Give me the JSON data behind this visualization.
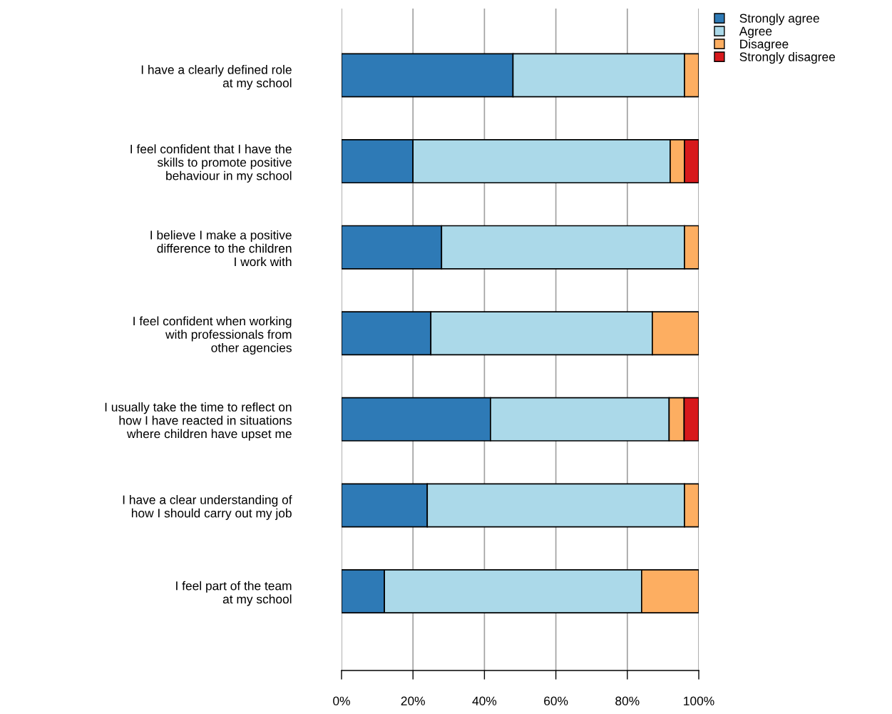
{
  "chart_data": {
    "type": "bar",
    "orientation": "horizontal",
    "stacked": true,
    "categories": [
      "I have a clearly defined role\nat my school",
      "I feel confident that I have the\nskills to promote positive\nbehaviour in my school",
      "I believe I make a positive\ndifference to the children\nI work with",
      "I feel confident when working\nwith professionals from\nother agencies",
      "I usually take the time to reflect on\nhow I have reacted in situations\nwhere children have upset me",
      "I have a clear understanding of\nhow I should carry out my job",
      "I feel part of the team\nat my school"
    ],
    "series": [
      {
        "name": "Strongly agree",
        "color": "#2e7ab6",
        "values": [
          48,
          20,
          28,
          25,
          41.7,
          24,
          12
        ]
      },
      {
        "name": "Agree",
        "color": "#abd9e9",
        "values": [
          48,
          72,
          68,
          62,
          50,
          72,
          72
        ]
      },
      {
        "name": "Disagree",
        "color": "#fdae61",
        "values": [
          4,
          4,
          4,
          13,
          4.2,
          4,
          16
        ]
      },
      {
        "name": "Strongly disagree",
        "color": "#d7191c",
        "values": [
          null,
          4,
          null,
          null,
          4.1,
          null,
          null
        ]
      }
    ],
    "xlim": [
      0,
      100
    ],
    "xticks": [
      {
        "value": 0,
        "label": "0%"
      },
      {
        "value": 20,
        "label": "20%"
      },
      {
        "value": 40,
        "label": "40%"
      },
      {
        "value": 60,
        "label": "60%"
      },
      {
        "value": 80,
        "label": "80%"
      },
      {
        "value": 100,
        "label": "100%"
      }
    ],
    "grid": "x",
    "legend": "top right"
  }
}
